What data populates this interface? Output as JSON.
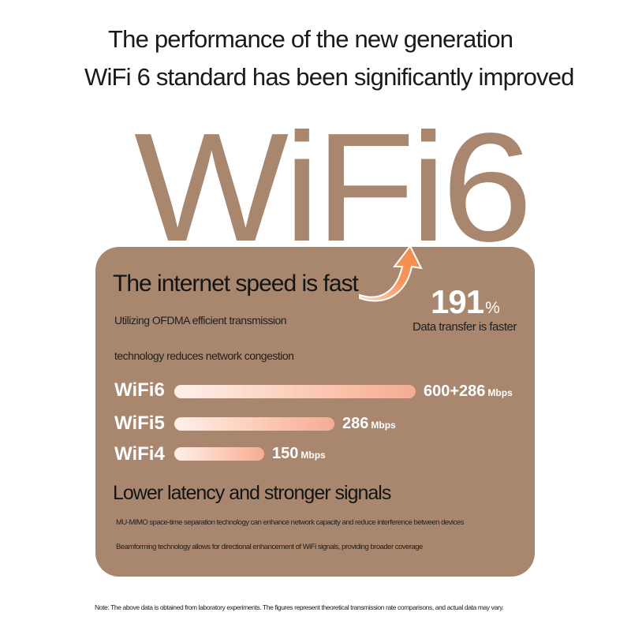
{
  "header": {
    "line1": "The performance of the new generation",
    "line2": "WiFi 6 standard has been significantly improved"
  },
  "hero_word": "WiFi6",
  "speed_section": {
    "title": "The internet speed is fast",
    "desc_line1": "Utilizing OFDMA efficient transmission",
    "desc_line2": "technology reduces network congestion",
    "improvement": {
      "value": "191",
      "unit": "%",
      "caption": "Data transfer is faster"
    }
  },
  "speed_bars": [
    {
      "label": "WiFi6",
      "value": "600+286",
      "unit": "Mbps",
      "fill": 0.55
    },
    {
      "label": "WiFi5",
      "value": "286",
      "unit": "Mbps",
      "fill": 0.365
    },
    {
      "label": "WiFi4",
      "value": "150",
      "unit": "Mbps",
      "fill": 0.205
    }
  ],
  "latency_section": {
    "title": "Lower latency and stronger signals",
    "mimo_text": "MU-MIMO space-time separation technology can enhance network capacity and reduce interference between devices",
    "beam_text": "Beamforming technology allows for directional enhancement of WiFi signals, providing broader coverage"
  },
  "footnote": "Note: The above data is obtained from laboratory experiments. The figures represent theoretical transmission rate comparisons, and actual data may vary.",
  "colors": {
    "card": "#a8876e",
    "hero_text": "#a8876e",
    "bar_start": "#fff0ea",
    "bar_end": "#f6ab93",
    "arrow": "#f28a4a"
  },
  "icons": {
    "arrow": "curved-up-arrow-icon"
  }
}
